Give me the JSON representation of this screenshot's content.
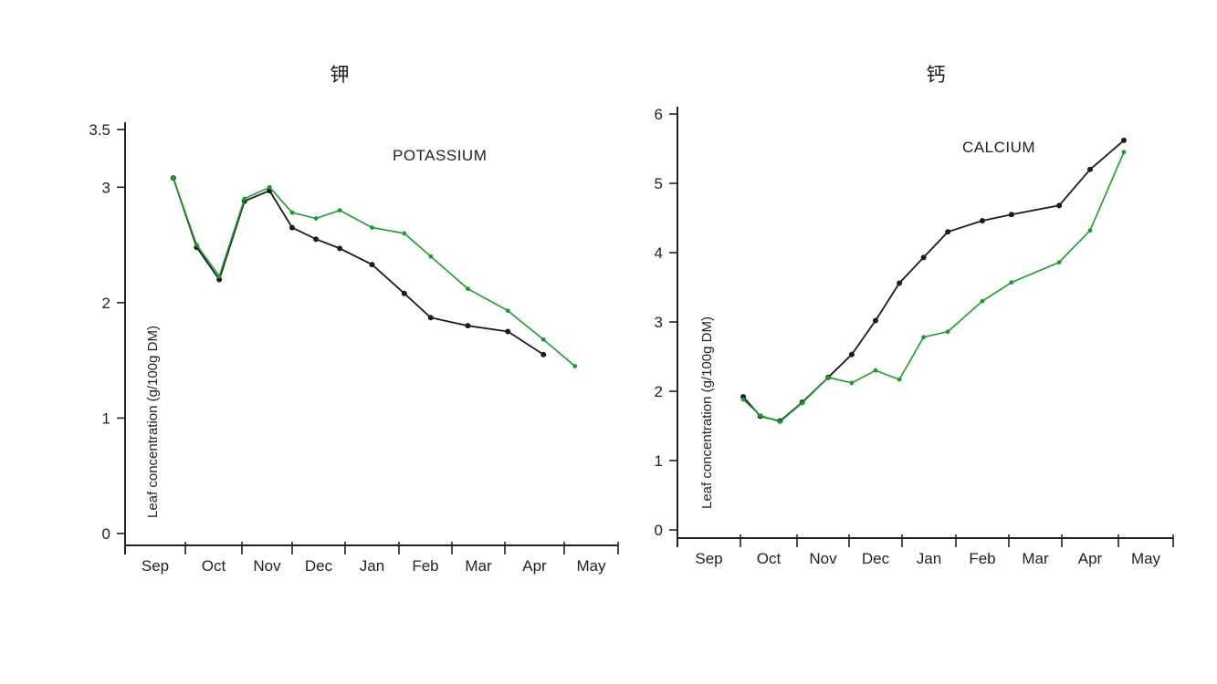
{
  "panel_titles": {
    "left": "钾",
    "right": "钙"
  },
  "colors": {
    "series_black": "#1c1c1c",
    "series_green": "#1f9a2e",
    "axis": "#222222"
  },
  "chart_data": [
    {
      "type": "line",
      "title": "POTASSIUM",
      "ylabel": "Leaf concentration (g/100g DM)",
      "xlabel": "",
      "categories": [
        "Sep",
        "Oct",
        "Nov",
        "Dec",
        "Jan",
        "Feb",
        "Mar",
        "Apr",
        "May"
      ],
      "yticks": [
        "0",
        "1",
        "2",
        "3",
        "3.5"
      ],
      "ylim": [
        0,
        3.5
      ],
      "grid": false,
      "series": [
        {
          "color": "#1c1c1c",
          "x": [
            0.8,
            1.2,
            1.6,
            2.05,
            2.55,
            3.0,
            3.45,
            3.9,
            4.5,
            5.1,
            5.6,
            6.3,
            7.05,
            7.65
          ],
          "y": [
            3.08,
            2.48,
            2.2,
            2.88,
            2.97,
            2.65,
            2.55,
            2.47,
            2.33,
            2.08,
            1.87,
            1.8,
            1.75,
            1.55
          ]
        },
        {
          "color": "#1f9a2e",
          "x": [
            0.8,
            1.2,
            1.6,
            2.05,
            2.55,
            3.0,
            3.45,
            3.9,
            4.5,
            5.1,
            5.6,
            6.3,
            7.05,
            7.65,
            8.2
          ],
          "y": [
            3.08,
            2.5,
            2.23,
            2.9,
            3.0,
            2.78,
            2.73,
            2.8,
            2.65,
            2.6,
            2.4,
            2.12,
            1.93,
            1.68,
            1.45
          ]
        }
      ]
    },
    {
      "type": "line",
      "title": "CALCIUM",
      "ylabel": "Leaf concentration (g/100g DM)",
      "xlabel": "",
      "categories": [
        "Sep",
        "Oct",
        "Nov",
        "Dec",
        "Jan",
        "Feb",
        "Mar",
        "Apr",
        "May"
      ],
      "yticks": [
        "0",
        "1",
        "2",
        "3",
        "4",
        "5",
        "6"
      ],
      "ylim": [
        0,
        6
      ],
      "grid": false,
      "series": [
        {
          "color": "#1c1c1c",
          "x": [
            1.05,
            1.35,
            1.7,
            2.1,
            2.6,
            3.05,
            3.5,
            3.95,
            4.4,
            4.85,
            5.5,
            6.05,
            6.95,
            7.5,
            8.1
          ],
          "y": [
            1.92,
            1.64,
            1.57,
            1.84,
            2.2,
            2.53,
            3.02,
            3.56,
            3.93,
            4.3,
            4.46,
            4.55,
            4.68,
            5.2,
            5.62
          ]
        },
        {
          "color": "#1f9a2e",
          "x": [
            1.05,
            1.35,
            1.7,
            2.1,
            2.6,
            3.05,
            3.5,
            3.95,
            4.4,
            4.85,
            5.5,
            6.05,
            6.95,
            7.5,
            8.1
          ],
          "y": [
            1.88,
            1.65,
            1.56,
            1.83,
            2.2,
            2.12,
            2.3,
            2.17,
            2.78,
            2.86,
            3.3,
            3.57,
            3.86,
            4.32,
            5.45
          ]
        }
      ]
    }
  ]
}
